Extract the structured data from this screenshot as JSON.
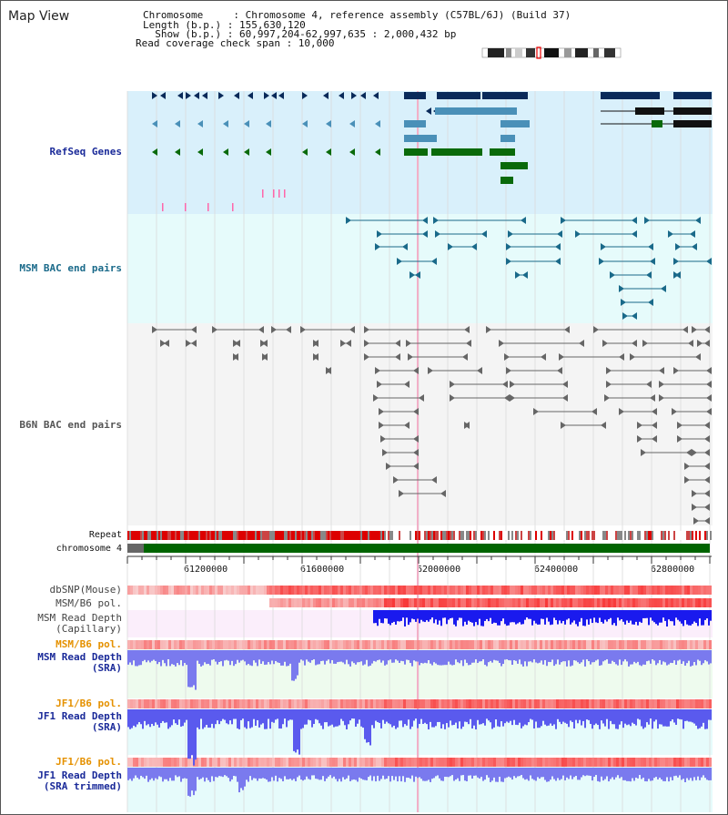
{
  "header": {
    "title": "Map View",
    "chromosome_line": "Chromosome     : Chromosome 4, reference assembly (C57BL/6J) (Build 37)",
    "length_line": "Length (b.p.) : 155,630,120",
    "show_line": "  Show (b.p.) : 60,997,204-62,997,635 : 2,000,432 bp",
    "coverage_line": "Read coverage check span : 10,000"
  },
  "tracks": {
    "refseq": "RefSeq Genes",
    "msm_bac": "MSM BAC end pairs",
    "b6n_bac": "B6N BAC end pairs",
    "repeat": "Repeat",
    "chromosome": "chromosome 4",
    "dbsnp": "dbSNP(Mouse)",
    "msm_pol_1": "MSM/B6 pol.",
    "msm_depth_cap_1": "MSM Read Depth",
    "msm_depth_cap_2": "(Capillary)",
    "msm_pol_2": "MSM/B6 pol.",
    "msm_depth_sra_1": "MSM Read Depth",
    "msm_depth_sra_2": "(SRA)",
    "jf1_pol_1": "JF1/B6 pol.",
    "jf1_depth_1": "JF1 Read Depth",
    "jf1_depth_2": "(SRA)",
    "jf1_pol_2": "JF1/B6 pol.",
    "jf1_trim_1": "JF1 Read Depth",
    "jf1_trim_2": "(SRA trimmed)"
  },
  "axis": {
    "ticks": [
      "61200000",
      "61600000",
      "62000000",
      "62400000",
      "62800000"
    ]
  },
  "colors": {
    "refseq_bg": "#d9f0fb",
    "msm_bg": "#e6fbfb",
    "b6n_bg": "#f4f4f4",
    "refseq_label": "#1a2a99",
    "msm_label": "#1a6a8a",
    "orange_label": "#e59100",
    "blue_label": "#1a2a99",
    "chrom_green": "#006400",
    "depth_blue": "#0000ee",
    "depth_light": "#7a7aee"
  }
}
